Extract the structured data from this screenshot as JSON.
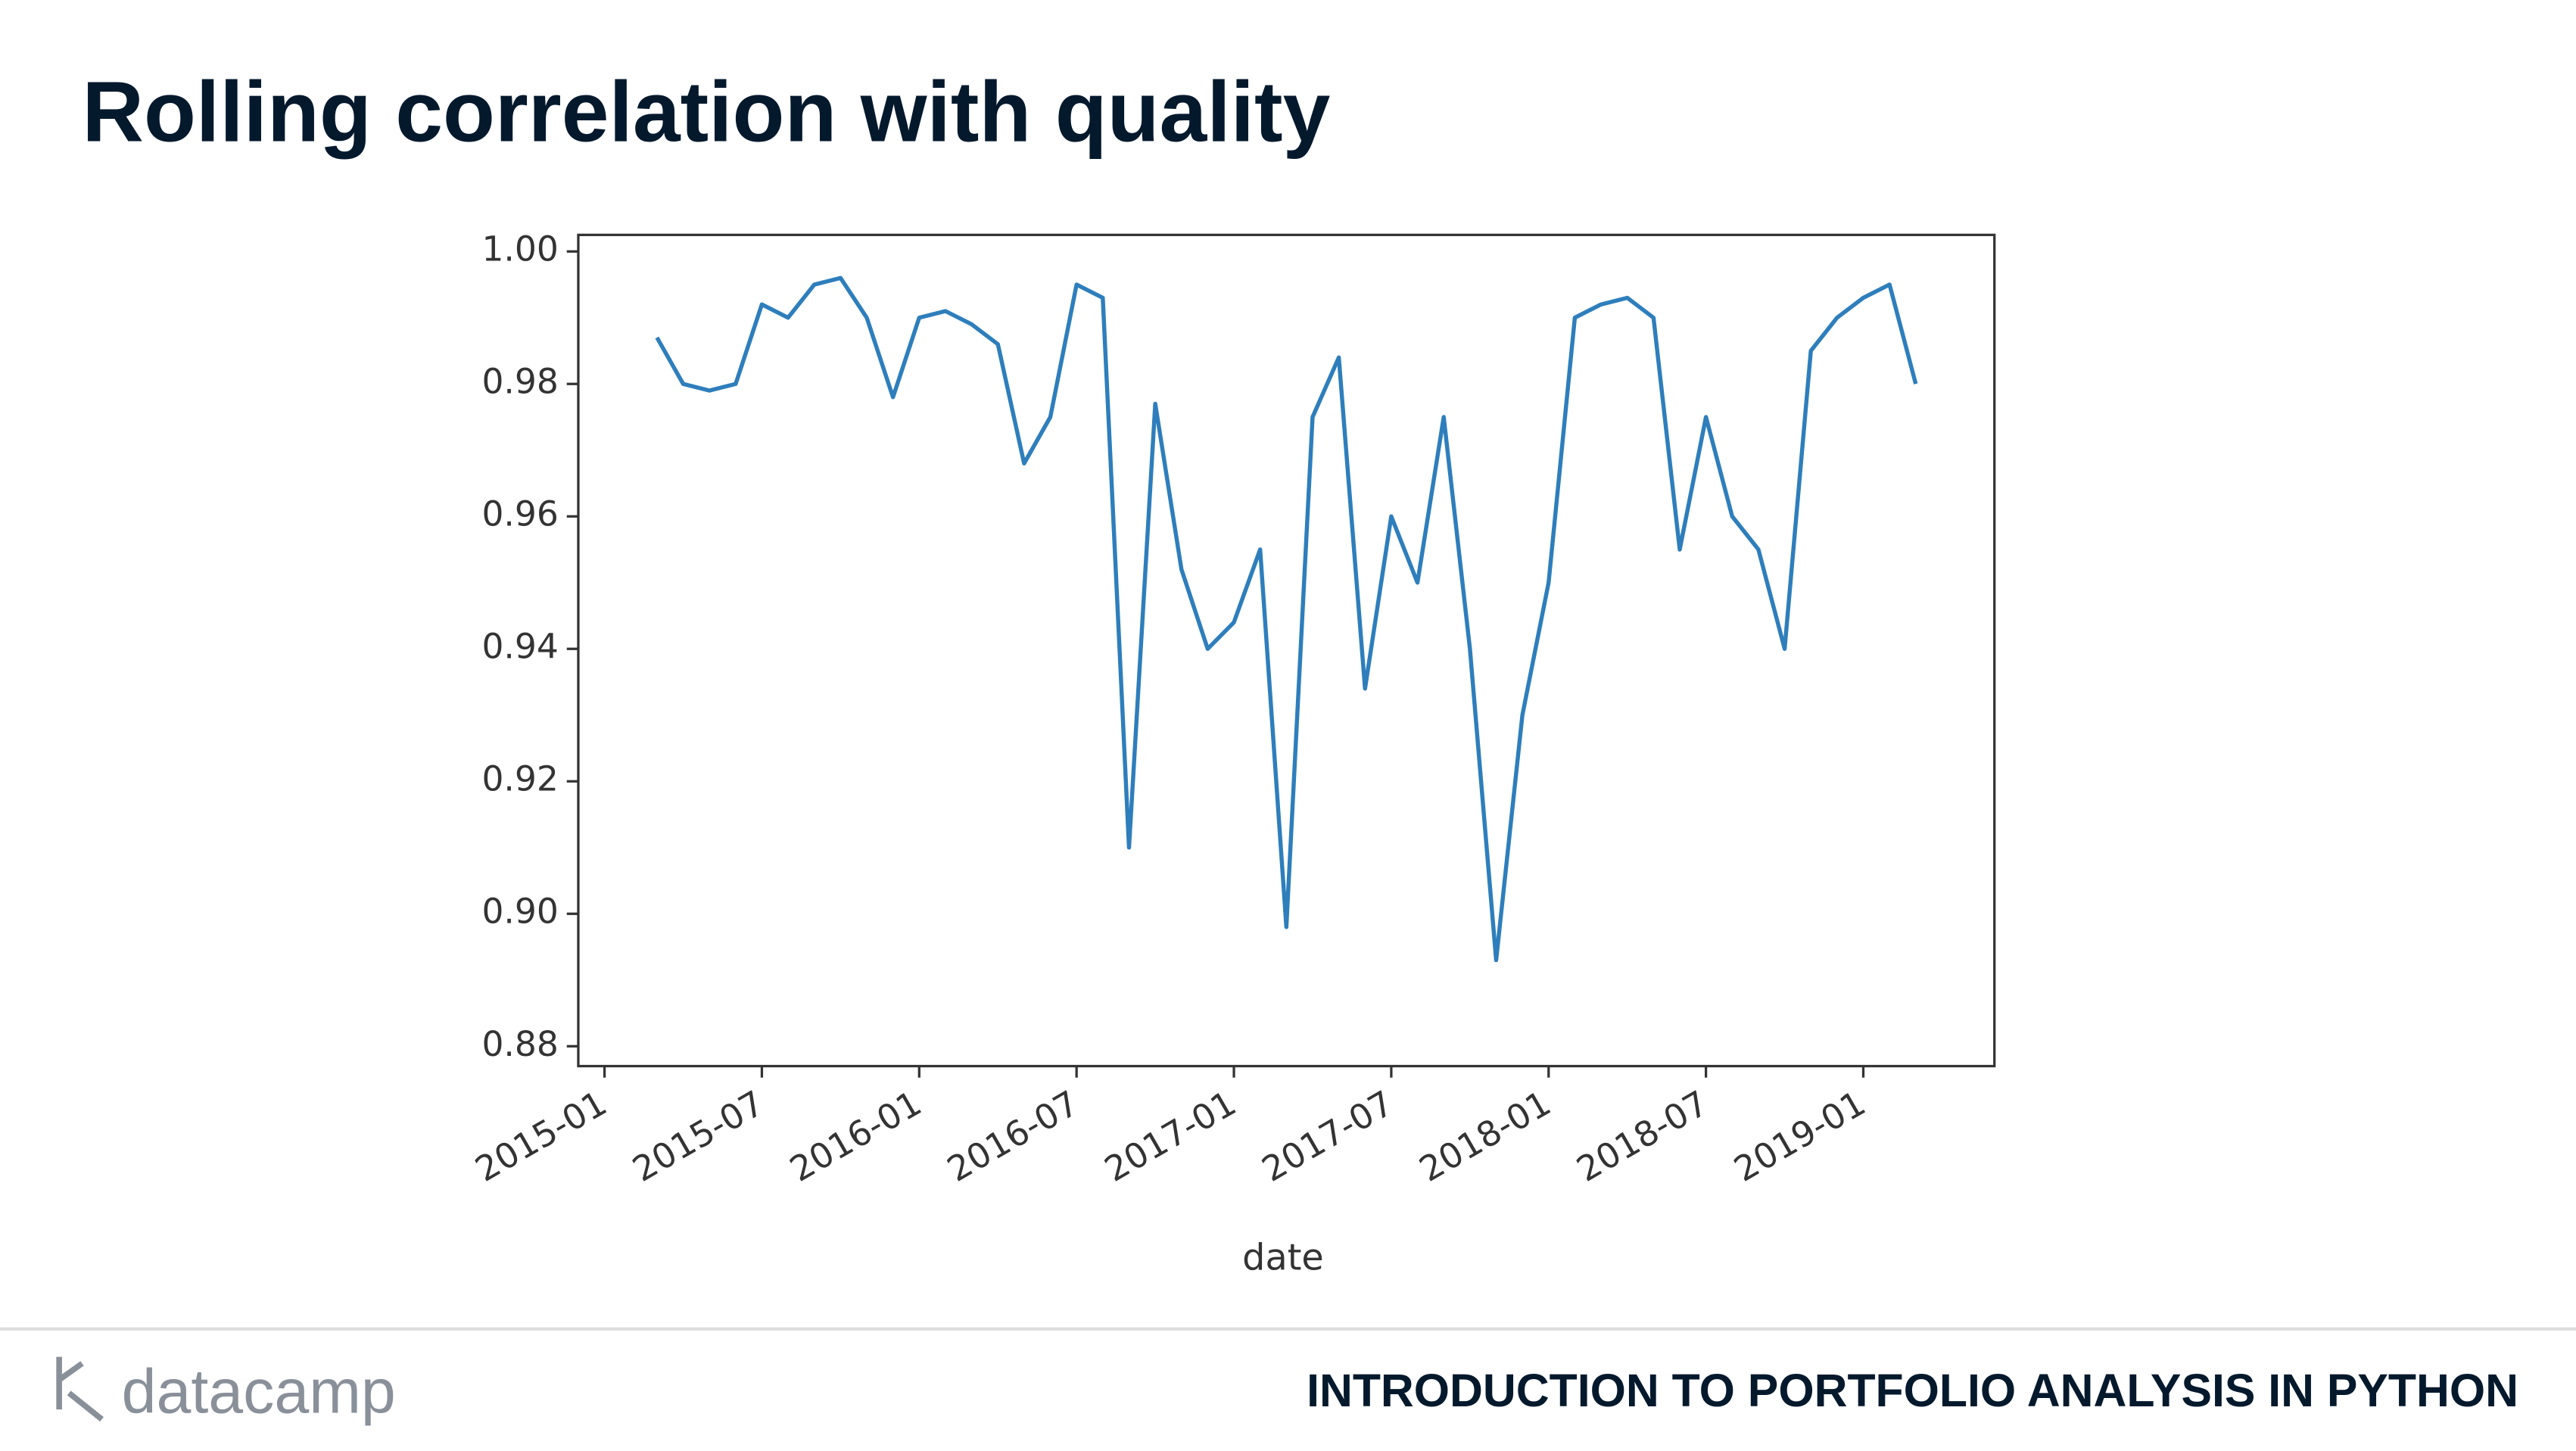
{
  "header": {
    "title": "Rolling correlation with quality"
  },
  "footer": {
    "logo": "datacamp",
    "course": "INTRODUCTION TO PORTFOLIO ANALYSIS IN PYTHON"
  },
  "chart_data": {
    "type": "line",
    "xlabel": "date",
    "x": [
      "2015-03",
      "2015-04",
      "2015-05",
      "2015-06",
      "2015-07",
      "2015-08",
      "2015-09",
      "2015-10",
      "2015-11",
      "2015-12",
      "2016-01",
      "2016-02",
      "2016-03",
      "2016-04",
      "2016-05",
      "2016-06",
      "2016-07",
      "2016-08",
      "2016-09",
      "2016-10",
      "2016-11",
      "2016-12",
      "2017-01",
      "2017-02",
      "2017-03",
      "2017-04",
      "2017-05",
      "2017-06",
      "2017-07",
      "2017-08",
      "2017-09",
      "2017-10",
      "2017-11",
      "2017-12",
      "2018-01",
      "2018-02",
      "2018-03",
      "2018-04",
      "2018-05",
      "2018-06",
      "2018-07",
      "2018-08",
      "2018-09",
      "2018-10",
      "2018-11",
      "2018-12",
      "2019-01",
      "2019-02",
      "2019-03"
    ],
    "series": [
      {
        "color": "#2e7ebc",
        "values": [
          0.987,
          0.98,
          0.979,
          0.98,
          0.992,
          0.99,
          0.995,
          0.996,
          0.99,
          0.978,
          0.99,
          0.991,
          0.989,
          0.986,
          0.968,
          0.975,
          0.995,
          0.993,
          0.91,
          0.977,
          0.952,
          0.94,
          0.944,
          0.955,
          0.898,
          0.975,
          0.984,
          0.934,
          0.96,
          0.95,
          0.975,
          0.94,
          0.893,
          0.93,
          0.95,
          0.99,
          0.992,
          0.993,
          0.99,
          0.955,
          0.975,
          0.96,
          0.955,
          0.94,
          0.985,
          0.99,
          0.993,
          0.995,
          0.98
        ]
      }
    ],
    "xlim": [
      "2014-12",
      "2019-06"
    ],
    "xticks": [
      "2015-01",
      "2015-07",
      "2016-01",
      "2016-07",
      "2017-01",
      "2017-07",
      "2018-01",
      "2018-07",
      "2019-01"
    ],
    "ylim": [
      0.877,
      1.0025
    ],
    "yticks": [
      {
        "value": 0.88,
        "label": "0.88"
      },
      {
        "value": 0.9,
        "label": "0.90"
      },
      {
        "value": 0.92,
        "label": "0.92"
      },
      {
        "value": 0.94,
        "label": "0.94"
      },
      {
        "value": 0.96,
        "label": "0.96"
      },
      {
        "value": 0.98,
        "label": "0.98"
      },
      {
        "value": 1.0,
        "label": "1.00"
      }
    ],
    "grid": false
  }
}
